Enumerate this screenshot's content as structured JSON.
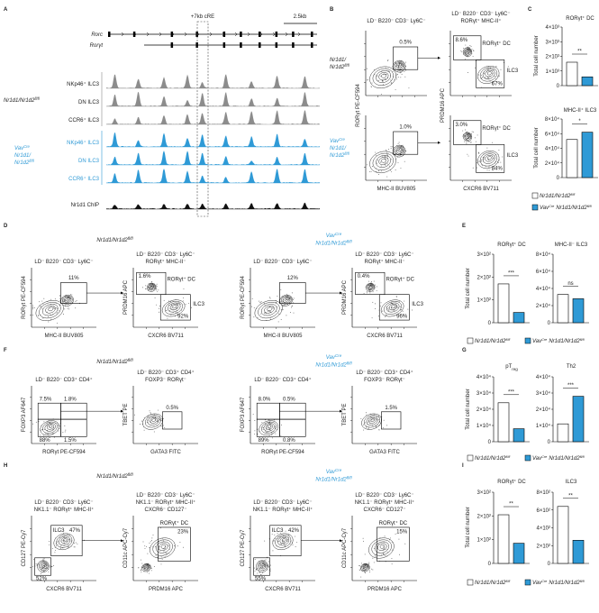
{
  "genotypes": {
    "control": {
      "name1": "Nr1d1/",
      "name2": "Nr1d2",
      "sup": "fl/fl"
    },
    "knockout": {
      "cre": "Vav",
      "cre_sup": "Cre",
      "name1": "Nr1d1/",
      "name2": "Nr1d2",
      "sup": "fl/fl"
    }
  },
  "colors": {
    "control": "#8c8c8c",
    "knockout": "#2f9ad6",
    "chip": "#111111",
    "control_bar": "#ffffff"
  },
  "panel_a": {
    "letter": "A",
    "genes": [
      "Rorc",
      "Rorγt"
    ],
    "element": "+7kb cRE",
    "scale": "2.5kb",
    "tracks": [
      "NKp46⁺ ILC3",
      "DN ILC3",
      "CCR6⁺ ILC3"
    ],
    "chip": "Nr1d1 ChIP"
  },
  "flow_rows": [
    {
      "letter": "B",
      "headers": [
        [
          "LD⁻ B220⁻ CD3⁻ Ly6C⁻"
        ],
        [
          "LD⁻ B220⁻ CD3⁻ Ly6C⁻",
          "RORγt⁺ MHC-II⁺"
        ]
      ],
      "axes": [
        {
          "x": "MHC-II BUV805",
          "y": "RORγt PE-CF594"
        },
        {
          "x": "CXCR6 BV711",
          "y": "PRDM16 APC"
        }
      ],
      "gates": [
        [
          [
            "0.5%"
          ],
          [
            "8.6%",
            "RORγt⁺ DC",
            "ILC3",
            "67%"
          ]
        ],
        [
          [
            "1.0%"
          ],
          [
            "3.0%",
            "RORγt⁺ DC",
            "ILC3",
            "84%"
          ]
        ]
      ]
    },
    {
      "letter": "D",
      "headers": [
        [
          "LD⁻ B220⁻ CD3⁻ Ly6C⁻"
        ],
        [
          "LD⁻ B220⁻ CD3⁻ Ly6C⁻",
          "RORγt⁺ MHC-II⁻"
        ]
      ],
      "axes": [
        {
          "x": "MHC-II BUV805",
          "y": "RORγt PE-CF594"
        },
        {
          "x": "CXCR6 BV711",
          "y": "PRDM16 APC"
        }
      ],
      "gates": [
        [
          [
            "11%"
          ],
          [
            "1.6%",
            "RORγt⁺ DC",
            "ILC3",
            "92%"
          ]
        ],
        [
          [
            "12%"
          ],
          [
            "0.4%",
            "RORγt⁺ DC",
            "ILC3",
            "96%"
          ]
        ]
      ]
    },
    {
      "letter": "F",
      "headers": [
        [
          "LD⁻ B220⁻ CD3⁺ CD4⁺"
        ],
        [
          "LD⁻ B220⁻ CD3⁺ CD4⁺",
          "FOXP3⁻ RORγt⁻"
        ]
      ],
      "axes": [
        {
          "x": "RORγt PE-CF594",
          "y": "FOXP3 AF647"
        },
        {
          "x": "GATA3 FITC",
          "y": "TBET PE"
        }
      ],
      "gates": [
        [
          [
            "7.5%",
            "1.8%",
            "88%",
            "1.5%"
          ],
          [
            "0.5%"
          ]
        ],
        [
          [
            "8.0%",
            "0.5%",
            "89%",
            "0.8%"
          ],
          [
            "1.5%"
          ]
        ]
      ]
    },
    {
      "letter": "H",
      "headers": [
        [
          "LD⁻ B220⁻ CD3⁻ Ly6C⁻",
          "NK1.1⁻ RORγt⁺ MHC-II⁺"
        ],
        [
          "LD⁻ B220⁻ CD3⁻ Ly6C⁻",
          "NK1.1⁻ RORγt⁺ MHC-II⁺",
          "CXCR6⁻ CD127⁻"
        ]
      ],
      "axes": [
        {
          "x": "CXCR6 BV711",
          "y": "CD127 PE-Cy7"
        },
        {
          "x": "PRDM16 APC",
          "y": "CD11c APC-Cy7"
        }
      ],
      "gates": [
        [
          [
            "ILC3",
            "47%",
            "52%"
          ],
          [
            "RORγt⁺ DC",
            "23%"
          ]
        ],
        [
          [
            "ILC3",
            "42%",
            "55%"
          ],
          [
            "RORγt⁺ DC",
            "15%"
          ]
        ]
      ]
    }
  ],
  "bar_panels": [
    {
      "letter": "C",
      "y_label": "Total cell number",
      "charts": [
        {
          "title": "RORγt⁺ DC",
          "ylim": [
            0,
            4000
          ],
          "yticks": [
            0,
            {
              "value": 1000,
              "label": "1×10³"
            },
            {
              "value": 2000,
              "label": "2×10³"
            },
            {
              "value": 3000,
              "label": "3×10³"
            },
            {
              "value": 4000,
              "label": "4×10³"
            }
          ],
          "values": [
            1600,
            600
          ],
          "significance": "**"
        },
        {
          "title": "MHC-II⁺ ILC3",
          "ylim": [
            0,
            80000
          ],
          "yticks": [
            0,
            {
              "value": 20000,
              "label": "2×10⁴"
            },
            {
              "value": 40000,
              "label": "4×10⁴"
            },
            {
              "value": 60000,
              "label": "6×10⁴"
            },
            {
              "value": 80000,
              "label": "8×10⁴"
            }
          ],
          "values": [
            52000,
            62000
          ],
          "significance": "*"
        }
      ]
    },
    {
      "letter": "E",
      "y_label": "Total cell number",
      "charts": [
        {
          "title": "RORγt⁺ DC",
          "ylim": [
            0,
            300
          ],
          "yticks": [
            0,
            {
              "value": 100,
              "label": "1×10²"
            },
            {
              "value": 200,
              "label": "2×10²"
            },
            {
              "value": 300,
              "label": "3×10²"
            }
          ],
          "values": [
            170,
            45
          ],
          "significance": "***"
        },
        {
          "title": "MHC-II⁻ ILC3",
          "ylim": [
            0,
            80000
          ],
          "yticks": [
            0,
            {
              "value": 20000,
              "label": "2×10⁴"
            },
            {
              "value": 40000,
              "label": "4×10⁴"
            },
            {
              "value": 60000,
              "label": "6×10⁴"
            },
            {
              "value": 80000,
              "label": "8×10⁴"
            }
          ],
          "values": [
            33000,
            28000
          ],
          "significance": "ns"
        }
      ]
    },
    {
      "letter": "G",
      "y_label": "Total cell number",
      "charts": [
        {
          "title": {
            "main": "pT",
            "sub": "reg"
          },
          "ylim": [
            0,
            40000
          ],
          "yticks": [
            0,
            {
              "value": 10000,
              "label": "1×10⁴"
            },
            {
              "value": 20000,
              "label": "2×10⁴"
            },
            {
              "value": 30000,
              "label": "3×10⁴"
            },
            {
              "value": 40000,
              "label": "4×10⁴"
            }
          ],
          "values": [
            24000,
            8000
          ],
          "significance": "***"
        },
        {
          "title": "Th2",
          "ylim": [
            0,
            40000
          ],
          "yticks": [
            0,
            {
              "value": 10000,
              "label": "1×10⁴"
            },
            {
              "value": 20000,
              "label": "2×10⁴"
            },
            {
              "value": 30000,
              "label": "3×10⁴"
            },
            {
              "value": 40000,
              "label": "4×10⁴"
            }
          ],
          "values": [
            11000,
            28000
          ],
          "significance": "***"
        }
      ]
    },
    {
      "letter": "I",
      "y_label": "Total cell number",
      "charts": [
        {
          "title": "RORγt⁺ DC",
          "ylim": [
            0,
            300
          ],
          "yticks": [
            0,
            {
              "value": 100,
              "label": "1×10²"
            },
            {
              "value": 200,
              "label": "2×10²"
            },
            {
              "value": 300,
              "label": "3×10²"
            }
          ],
          "values": [
            205,
            85
          ],
          "significance": "**"
        },
        {
          "title": "ILC3",
          "ylim": [
            0,
            800
          ],
          "yticks": [
            0,
            {
              "value": 200,
              "label": "2×10²"
            },
            {
              "value": 400,
              "label": "4×10²"
            },
            {
              "value": 600,
              "label": "6×10²"
            },
            {
              "value": 800,
              "label": "8×10²"
            }
          ],
          "values": [
            640,
            260
          ],
          "significance": "**"
        }
      ]
    }
  ]
}
